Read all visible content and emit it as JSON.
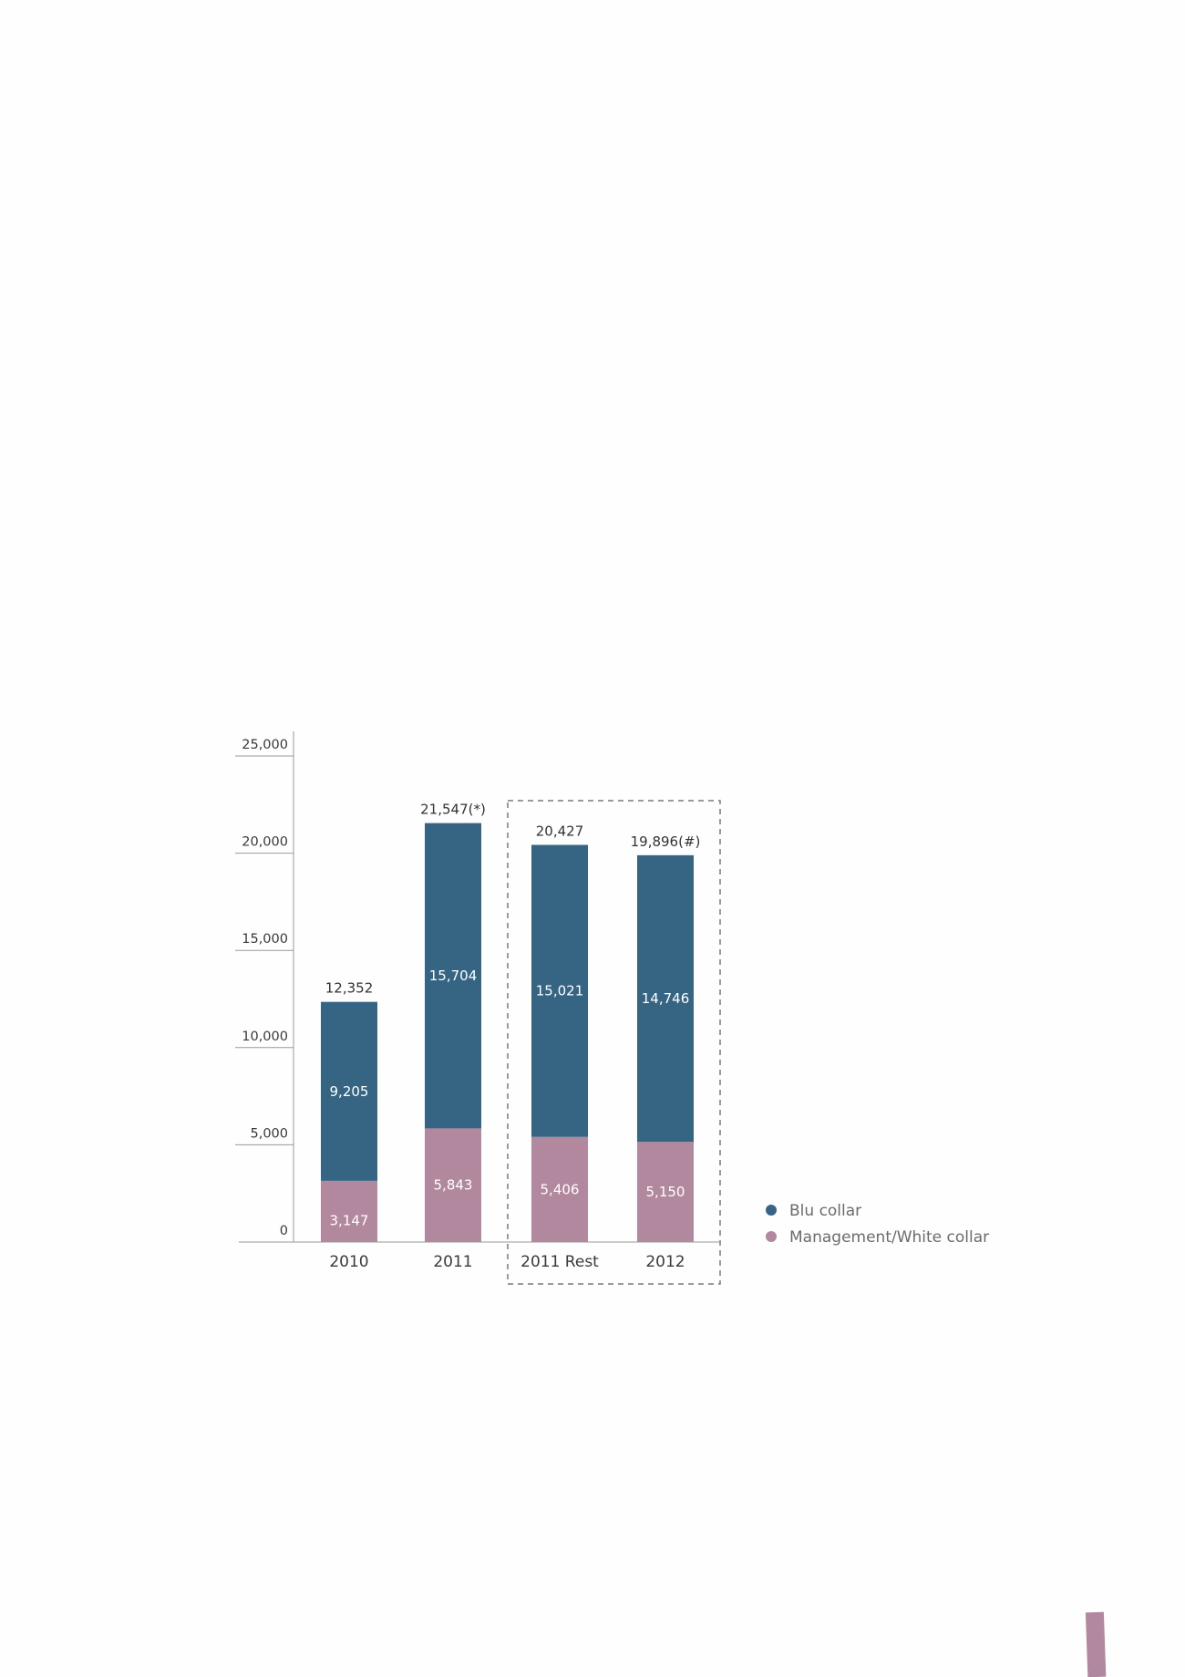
{
  "colors": {
    "blu_collar": "#366584",
    "management_white_collar": "#b2889f",
    "axis": "#9a9a9a",
    "page_tab": "#b2889f"
  },
  "chart_data": {
    "type": "bar",
    "stacked": true,
    "categories": [
      "2010",
      "2011",
      "2011 Rest",
      "2012"
    ],
    "series": [
      {
        "name": "Management/White collar",
        "values": [
          3147,
          5843,
          5406,
          5150
        ],
        "labels": [
          "3,147",
          "5,843",
          "5,406",
          "5,150"
        ]
      },
      {
        "name": "Blu collar",
        "values": [
          9205,
          15704,
          15021,
          14746
        ],
        "labels": [
          "9,205",
          "15,704",
          "15,021",
          "14,746"
        ]
      }
    ],
    "totals": [
      "12,352",
      "21,547(*)",
      "20,427",
      "19,896(#)"
    ],
    "total_values": [
      12352,
      21547,
      20427,
      19896
    ],
    "y_ticks": [
      0,
      5000,
      10000,
      15000,
      20000,
      25000
    ],
    "y_tick_labels": [
      "0",
      "5,000",
      "10,000",
      "15,000",
      "20,000",
      "25,000"
    ],
    "ylim": [
      0,
      25000
    ],
    "highlight_box_categories": [
      "2011 Rest",
      "2012"
    ],
    "legend": [
      "Blu collar",
      "Management/White collar"
    ],
    "legend_position": "right",
    "grid": false
  }
}
